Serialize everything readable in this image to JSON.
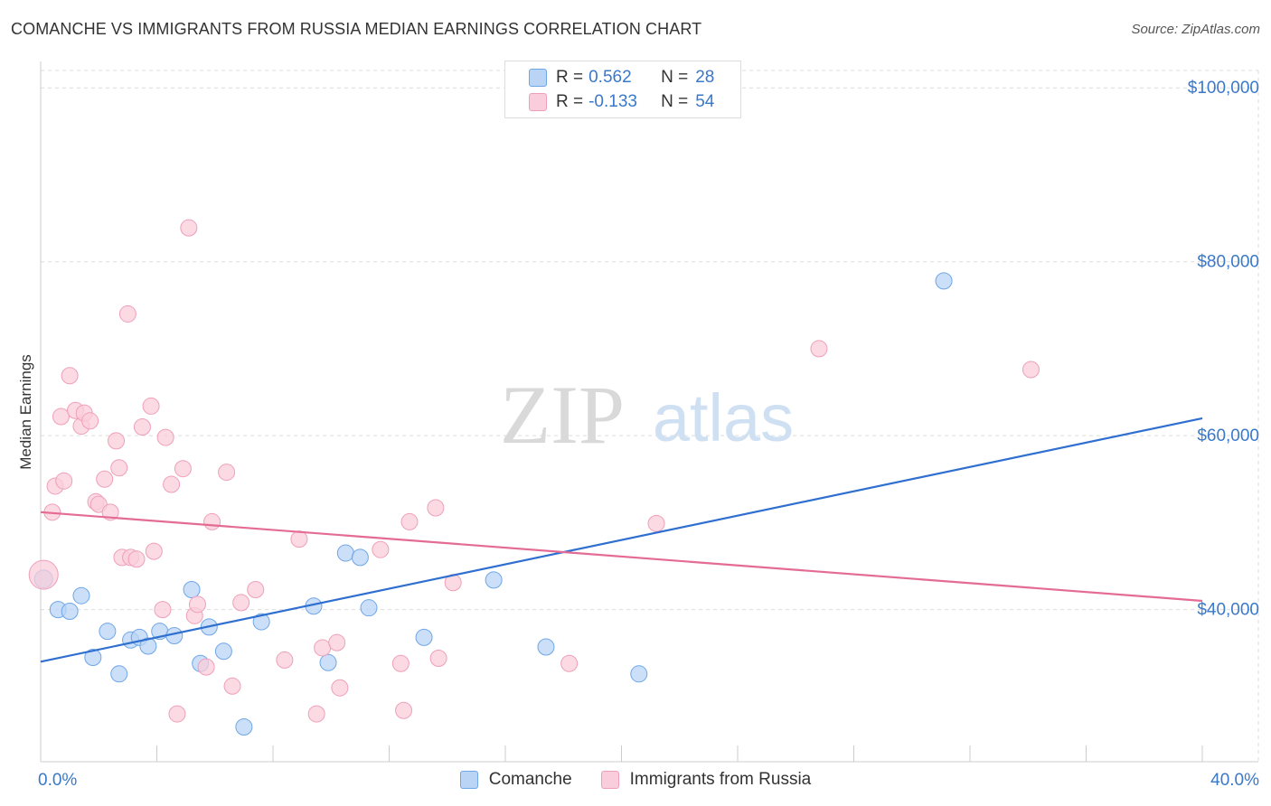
{
  "title": "COMANCHE VS IMMIGRANTS FROM RUSSIA MEDIAN EARNINGS CORRELATION CHART",
  "source": "Source: ZipAtlas.com",
  "watermark": {
    "zip": "ZIP",
    "atlas": "atlas"
  },
  "legend": {
    "r_label": "R =",
    "n_label": "N =",
    "rows": [
      {
        "r": "0.562",
        "n": "28"
      },
      {
        "r": "-0.133",
        "n": "54"
      }
    ]
  },
  "chart_data": {
    "type": "scatter",
    "title": "COMANCHE VS IMMIGRANTS FROM RUSSIA MEDIAN EARNINGS CORRELATION CHART",
    "ylabel": "Median Earnings",
    "xlabel": "",
    "xlim": [
      0,
      40
    ],
    "ylim": [
      22500,
      102000
    ],
    "x_tick_labels": [
      "0.0%",
      "40.0%"
    ],
    "y_ticks": [
      40000,
      60000,
      80000,
      100000
    ],
    "y_tick_labels": [
      "$40,000",
      "$60,000",
      "$80,000",
      "$100,000"
    ],
    "grid": true,
    "legend_position": "top-center",
    "series": [
      {
        "name": "Comanche",
        "color": "#6ea6e8",
        "fill": "#b9d4f5",
        "trend": {
          "x": [
            0,
            40
          ],
          "y": [
            34000,
            62000
          ],
          "color": "#2f6fcf"
        },
        "points": [
          [
            0.1,
            43500
          ],
          [
            0.6,
            40000
          ],
          [
            1.0,
            39800
          ],
          [
            1.4,
            41600
          ],
          [
            1.8,
            34500
          ],
          [
            2.3,
            37500
          ],
          [
            2.7,
            32600
          ],
          [
            3.1,
            36500
          ],
          [
            3.4,
            36800
          ],
          [
            3.7,
            35800
          ],
          [
            4.1,
            37500
          ],
          [
            4.6,
            37000
          ],
          [
            5.2,
            42300
          ],
          [
            5.5,
            33800
          ],
          [
            5.8,
            38000
          ],
          [
            6.3,
            35200
          ],
          [
            7.0,
            26500
          ],
          [
            7.6,
            38600
          ],
          [
            9.4,
            40400
          ],
          [
            9.9,
            33900
          ],
          [
            10.5,
            46500
          ],
          [
            11.0,
            46000
          ],
          [
            11.3,
            40200
          ],
          [
            13.2,
            36800
          ],
          [
            15.6,
            43400
          ],
          [
            17.4,
            35700
          ],
          [
            20.6,
            32600
          ],
          [
            31.1,
            77800
          ]
        ]
      },
      {
        "name": "Immigrants from Russia",
        "color": "#ef9fba",
        "fill": "#f9cddb",
        "trend": {
          "x": [
            0,
            40
          ],
          "y": [
            51200,
            41000
          ],
          "color": "#e46b95"
        },
        "points": [
          [
            0.1,
            44000
          ],
          [
            0.4,
            51200
          ],
          [
            0.5,
            54200
          ],
          [
            0.7,
            62200
          ],
          [
            0.8,
            54800
          ],
          [
            1.0,
            66900
          ],
          [
            1.2,
            62900
          ],
          [
            1.4,
            61100
          ],
          [
            1.5,
            62600
          ],
          [
            1.7,
            61700
          ],
          [
            1.9,
            52400
          ],
          [
            2.0,
            52100
          ],
          [
            2.2,
            55000
          ],
          [
            2.4,
            51200
          ],
          [
            2.6,
            59400
          ],
          [
            2.7,
            56300
          ],
          [
            2.8,
            46000
          ],
          [
            3.0,
            74000
          ],
          [
            3.1,
            46000
          ],
          [
            3.3,
            45800
          ],
          [
            3.5,
            61000
          ],
          [
            3.8,
            63400
          ],
          [
            3.9,
            46700
          ],
          [
            4.2,
            40000
          ],
          [
            4.3,
            59800
          ],
          [
            4.5,
            54400
          ],
          [
            4.7,
            28000
          ],
          [
            4.9,
            56200
          ],
          [
            5.1,
            83900
          ],
          [
            5.3,
            39300
          ],
          [
            5.4,
            40600
          ],
          [
            5.7,
            33400
          ],
          [
            5.9,
            50100
          ],
          [
            6.4,
            55800
          ],
          [
            6.6,
            31200
          ],
          [
            6.9,
            40800
          ],
          [
            7.4,
            42300
          ],
          [
            8.4,
            34200
          ],
          [
            8.9,
            48100
          ],
          [
            9.5,
            28000
          ],
          [
            9.7,
            35600
          ],
          [
            10.2,
            36200
          ],
          [
            10.3,
            31000
          ],
          [
            11.7,
            46900
          ],
          [
            12.4,
            33800
          ],
          [
            12.5,
            28400
          ],
          [
            12.7,
            50100
          ],
          [
            13.6,
            51700
          ],
          [
            13.7,
            34400
          ],
          [
            14.2,
            43100
          ],
          [
            18.2,
            33800
          ],
          [
            21.2,
            49900
          ],
          [
            26.8,
            70000
          ],
          [
            34.1,
            67600
          ]
        ]
      }
    ]
  }
}
